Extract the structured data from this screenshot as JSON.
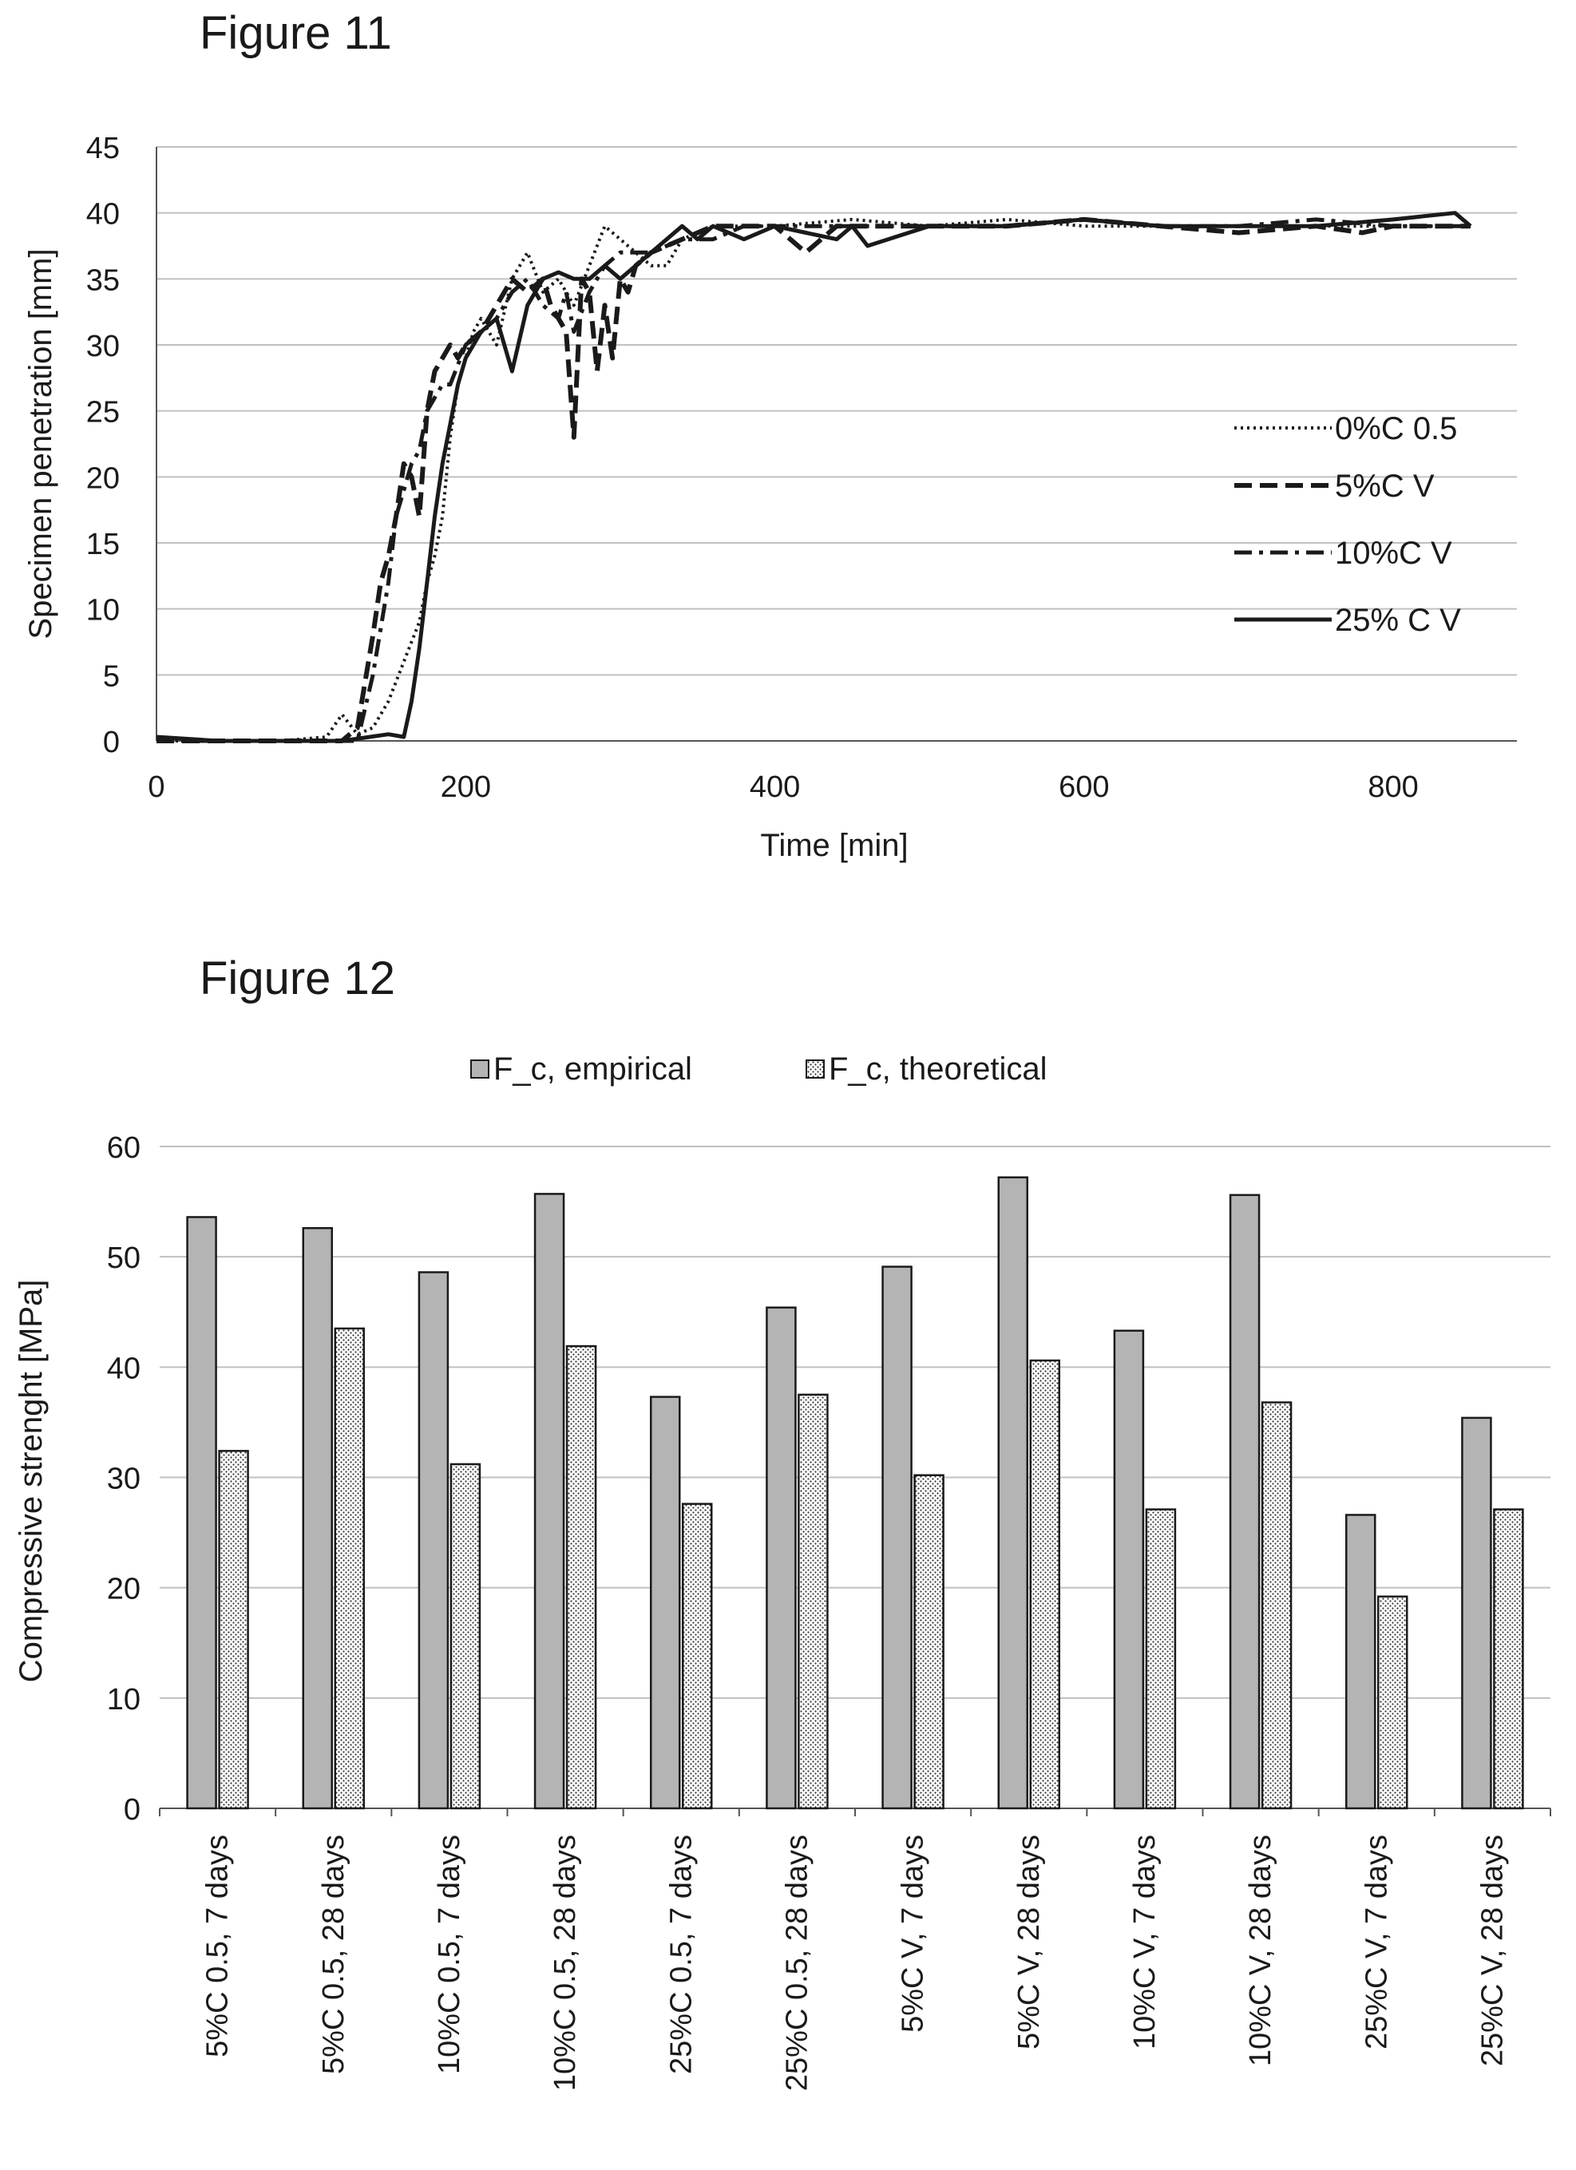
{
  "figures": {
    "fig11_title": "Figure 11",
    "fig12_title": "Figure 12"
  },
  "chart_data": [
    {
      "type": "line",
      "xlabel": "Time [min]",
      "ylabel": "Specimen penetration [mm]",
      "xlim": [
        0,
        880
      ],
      "ylim": [
        0,
        45
      ],
      "xticks": [
        0,
        200,
        400,
        600,
        800
      ],
      "yticks": [
        0,
        5,
        10,
        15,
        20,
        25,
        30,
        35,
        40,
        45
      ],
      "grid": "horizontal",
      "legend_position": "right",
      "series": [
        {
          "name": "0%C 0.5",
          "style": "dotted",
          "x": [
            0,
            40,
            80,
            110,
            120,
            130,
            140,
            150,
            160,
            170,
            175,
            180,
            185,
            190,
            195,
            200,
            205,
            210,
            220,
            230,
            240,
            250,
            260,
            270,
            280,
            290,
            300,
            310,
            320,
            330,
            340,
            360,
            380,
            400,
            450,
            500,
            550,
            600,
            650,
            700,
            750,
            800,
            850
          ],
          "y": [
            0,
            0,
            0,
            0.3,
            2,
            0.5,
            1,
            3,
            6,
            9,
            12,
            14,
            17,
            23,
            27,
            29,
            31,
            32,
            30,
            35,
            37,
            34,
            35,
            33,
            36,
            39,
            38,
            37,
            36,
            36,
            38,
            39,
            39,
            39,
            39.5,
            39,
            39.5,
            39,
            39,
            39,
            39,
            39,
            39
          ]
        },
        {
          "name": "5%C V",
          "style": "dashed",
          "x": [
            0,
            40,
            80,
            120,
            130,
            140,
            145,
            150,
            155,
            160,
            165,
            170,
            175,
            180,
            185,
            190,
            195,
            200,
            210,
            220,
            230,
            240,
            250,
            255,
            260,
            265,
            270,
            275,
            280,
            285,
            290,
            295,
            300,
            305,
            310,
            320,
            340,
            360,
            380,
            400,
            410,
            420,
            430,
            440,
            450,
            500,
            550,
            600,
            650,
            700,
            750,
            780,
            800,
            850
          ],
          "y": [
            0,
            0,
            0,
            0,
            1,
            8,
            12,
            14,
            17,
            21,
            20,
            17,
            25,
            28,
            29,
            30,
            29,
            30,
            31,
            33,
            35,
            34,
            35,
            33,
            32,
            31,
            23,
            35,
            34,
            28,
            33,
            29,
            35,
            34,
            36,
            37,
            38,
            39,
            39,
            39,
            38,
            37,
            38,
            39,
            39,
            39,
            39,
            39.5,
            39,
            38.5,
            39,
            38.5,
            39,
            39
          ]
        },
        {
          "name": "10%C V",
          "style": "dashdot",
          "x": [
            0,
            40,
            80,
            130,
            140,
            150,
            155,
            160,
            165,
            170,
            175,
            180,
            185,
            190,
            200,
            210,
            220,
            230,
            240,
            250,
            260,
            265,
            270,
            280,
            290,
            300,
            320,
            340,
            360,
            380,
            400,
            450,
            500,
            550,
            600,
            650,
            700,
            750,
            800,
            850
          ],
          "y": [
            0,
            0,
            0,
            0,
            5,
            12,
            17,
            19,
            21,
            22,
            25,
            26,
            27,
            27,
            30,
            31,
            32,
            34,
            35,
            33,
            32,
            34,
            31,
            34,
            36,
            37,
            37,
            38,
            38,
            39,
            39,
            39,
            39,
            39,
            39.5,
            39,
            39,
            39.5,
            39,
            39
          ]
        },
        {
          "name": "25% C V",
          "style": "solid",
          "x": [
            0,
            40,
            80,
            120,
            150,
            160,
            165,
            170,
            175,
            180,
            185,
            190,
            195,
            200,
            205,
            210,
            220,
            230,
            240,
            250,
            260,
            270,
            280,
            290,
            300,
            320,
            340,
            350,
            360,
            380,
            400,
            420,
            440,
            450,
            460,
            500,
            550,
            600,
            650,
            700,
            750,
            800,
            840,
            850
          ],
          "y": [
            0.3,
            0,
            0,
            0,
            0.5,
            0.3,
            3,
            7,
            12,
            17,
            21,
            24,
            27,
            29,
            30,
            31,
            32,
            28,
            33,
            35,
            35.5,
            35,
            35,
            36,
            35,
            37,
            39,
            38,
            39,
            38,
            39,
            38.5,
            38,
            39,
            37.5,
            39,
            39,
            39.5,
            39,
            39,
            39,
            39.5,
            40,
            39
          ]
        }
      ]
    },
    {
      "type": "bar",
      "ylabel": "Compressive strenght [MPa]",
      "ylim": [
        0,
        60
      ],
      "yticks": [
        0,
        10,
        20,
        30,
        40,
        50,
        60
      ],
      "grid": "horizontal",
      "legend_position": "top",
      "categories": [
        "5%C 0.5, 7 days",
        "5%C 0.5, 28 days",
        "10%C 0.5, 7 days",
        "10%C 0.5, 28 days",
        "25%C 0.5, 7 days",
        "25%C 0.5, 28 days",
        "5%C V, 7 days",
        "5%C V, 28 days",
        "10%C V, 7 days",
        "10%C V, 28 days",
        "25%C V, 7 days",
        "25%C V, 28 days"
      ],
      "series": [
        {
          "name": "F_c, empirical",
          "values": [
            53.6,
            52.6,
            48.6,
            55.7,
            37.3,
            45.4,
            49.1,
            57.2,
            43.3,
            55.6,
            26.6,
            35.4
          ]
        },
        {
          "name": "F_c, theoretical",
          "values": [
            32.4,
            43.5,
            31.2,
            41.9,
            27.6,
            37.5,
            30.2,
            40.6,
            27.1,
            36.8,
            19.2,
            27.1
          ]
        }
      ]
    }
  ]
}
